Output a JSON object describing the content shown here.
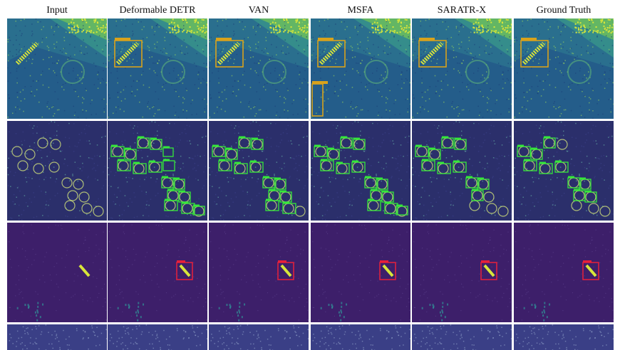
{
  "columns": [
    {
      "id": "input",
      "label": "Input"
    },
    {
      "id": "deformable-detr",
      "label": "Deformable DETR"
    },
    {
      "id": "van",
      "label": "VAN"
    },
    {
      "id": "msfa",
      "label": "MSFA"
    },
    {
      "id": "saratr-x",
      "label": "SARATR-X"
    },
    {
      "id": "ground-truth",
      "label": "Ground Truth"
    }
  ],
  "rows": [
    {
      "id": "bridge-scene",
      "box_color": "#d9a21b"
    },
    {
      "id": "tank-scene",
      "box_color": "#35e83a"
    },
    {
      "id": "ship-scene",
      "box_color": "#e8203a"
    },
    {
      "id": "terrain-scene",
      "box_color": ""
    }
  ],
  "colors": {
    "bridge_bg": "#2a6f8e",
    "tank_bg": "#2b2f6b",
    "ship_bg": "#3d1f6a",
    "terrain_bg": "#3a3f86",
    "highlight": "#d8e63a"
  }
}
